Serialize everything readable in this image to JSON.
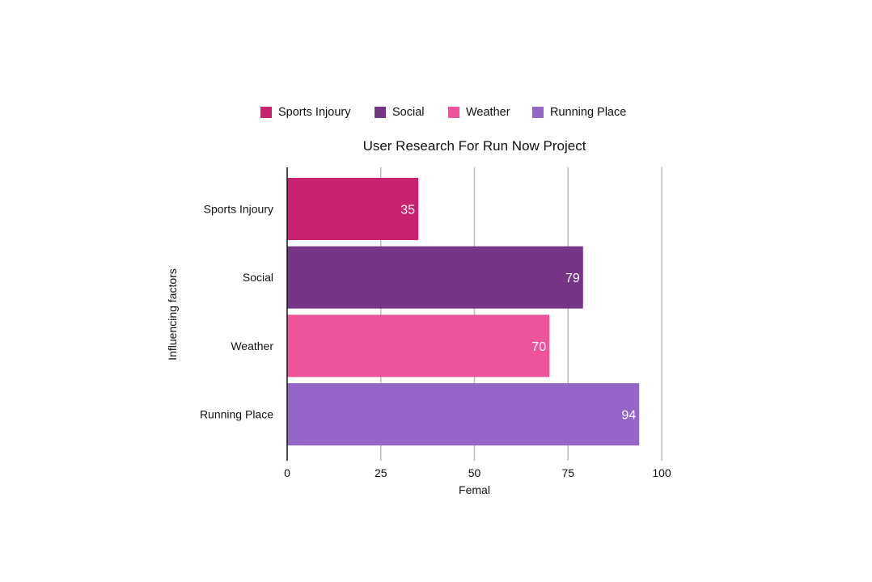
{
  "chart_data": {
    "type": "bar",
    "orientation": "horizontal",
    "title": "User Research For Run Now Project",
    "xlabel": "Femal",
    "ylabel": "Influencing factors",
    "categories": [
      "Sports Injoury",
      "Social",
      "Weather",
      "Running Place"
    ],
    "values": [
      35,
      79,
      70,
      94
    ],
    "colors": [
      "#c7236e",
      "#763586",
      "#ec559a",
      "#9366c7"
    ],
    "xlim": [
      0,
      100
    ],
    "xticks": [
      0,
      25,
      50,
      75,
      100
    ],
    "grid": "vertical",
    "legend_position": "top",
    "legend": [
      "Sports Injoury",
      "Social",
      "Weather",
      "Running Place"
    ],
    "data_labels": [
      "35",
      "79",
      "70",
      "94"
    ]
  }
}
